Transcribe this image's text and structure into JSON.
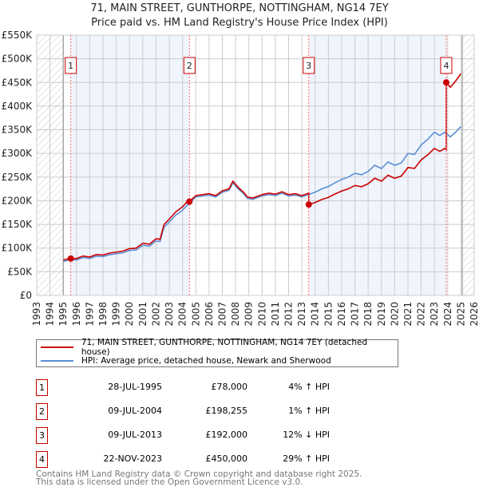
{
  "chart_data": {
    "type": "line",
    "title": "71, MAIN STREET, GUNTHORPE, NOTTINGHAM, NG14 7EY",
    "subtitle": "Price paid vs. HM Land Registry's House Price Index (HPI)",
    "xlim": [
      1993,
      2026
    ],
    "ylim": [
      0,
      550000
    ],
    "x_ticks": [
      "1993",
      "1994",
      "1995",
      "1996",
      "1997",
      "1998",
      "1999",
      "2000",
      "2001",
      "2002",
      "2003",
      "2004",
      "2005",
      "2006",
      "2007",
      "2008",
      "2009",
      "2010",
      "2011",
      "2012",
      "2013",
      "2014",
      "2015",
      "2016",
      "2017",
      "2018",
      "2019",
      "2020",
      "2021",
      "2022",
      "2023",
      "2024",
      "2025",
      "2026"
    ],
    "y_ticks": [
      {
        "v": 0,
        "label": "£0"
      },
      {
        "v": 50000,
        "label": "£50K"
      },
      {
        "v": 100000,
        "label": "£100K"
      },
      {
        "v": 150000,
        "label": "£150K"
      },
      {
        "v": 200000,
        "label": "£200K"
      },
      {
        "v": 250000,
        "label": "£250K"
      },
      {
        "v": 300000,
        "label": "£300K"
      },
      {
        "v": 350000,
        "label": "£350K"
      },
      {
        "v": 400000,
        "label": "£400K"
      },
      {
        "v": 450000,
        "label": "£450K"
      },
      {
        "v": 500000,
        "label": "£500K"
      },
      {
        "v": 550000,
        "label": "£550K"
      }
    ],
    "grid": true,
    "data_range": [
      1995,
      2025.1
    ],
    "hpi": {
      "name": "HPI: Average price, detached house, Newark and Sherwood",
      "color": "#5b8fd4",
      "x": [
        1995,
        1995.5,
        1996,
        1996.5,
        1997,
        1997.5,
        1998,
        1998.5,
        1999,
        1999.5,
        2000,
        2000.5,
        2001,
        2001.5,
        2002,
        2002.3,
        2002.6,
        2003,
        2003.5,
        2004,
        2004.5,
        2005,
        2005.5,
        2006,
        2006.5,
        2007,
        2007.5,
        2007.8,
        2008.2,
        2008.6,
        2008.9,
        2009.3,
        2009.7,
        2010,
        2010.5,
        2011,
        2011.5,
        2012,
        2012.5,
        2013,
        2013.5,
        2014,
        2014.5,
        2015,
        2015.5,
        2016,
        2016.5,
        2017,
        2017.5,
        2018,
        2018.5,
        2019,
        2019.5,
        2020,
        2020.5,
        2021,
        2021.5,
        2022,
        2022.5,
        2023,
        2023.4,
        2023.8,
        2024.2,
        2024.6,
        2025
      ],
      "y": [
        72000,
        75000,
        75000,
        80000,
        78000,
        83000,
        82000,
        86000,
        88000,
        90000,
        95000,
        96000,
        106000,
        104000,
        115000,
        114000,
        144000,
        155000,
        170000,
        180000,
        195000,
        208000,
        210000,
        212000,
        208000,
        218000,
        222000,
        238000,
        225000,
        215000,
        205000,
        203000,
        207000,
        210000,
        213000,
        211000,
        216000,
        210000,
        212000,
        208000,
        213000,
        218000,
        225000,
        230000,
        238000,
        245000,
        250000,
        258000,
        255000,
        262000,
        275000,
        268000,
        282000,
        275000,
        280000,
        300000,
        298000,
        318000,
        330000,
        345000,
        338000,
        345000,
        335000,
        345000,
        357000
      ]
    },
    "property": {
      "name": "71, MAIN STREET, GUNTHORPE, NOTTINGHAM, NG14 7EY (detached house)",
      "color": "#cc0000"
    },
    "sales": [
      {
        "n": "1",
        "x": 1995.57,
        "y": 78000,
        "date": "28-JUL-1995",
        "price": "£78,000",
        "hpi": "4% ↑ HPI"
      },
      {
        "n": "2",
        "x": 2004.52,
        "y": 198255,
        "date": "09-JUL-2004",
        "price": "£198,255",
        "hpi": "1% ↑ HPI"
      },
      {
        "n": "3",
        "x": 2013.52,
        "y": 192000,
        "date": "09-JUL-2013",
        "price": "£192,000",
        "hpi": "12% ↓ HPI"
      },
      {
        "n": "4",
        "x": 2023.89,
        "y": 450000,
        "date": "22-NOV-2023",
        "price": "£450,000",
        "hpi": "29% ↑ HPI"
      }
    ]
  },
  "footer": {
    "line1": "Contains HM Land Registry data © Crown copyright and database right 2025.",
    "line2": "This data is licensed under the Open Government Licence v3.0."
  }
}
